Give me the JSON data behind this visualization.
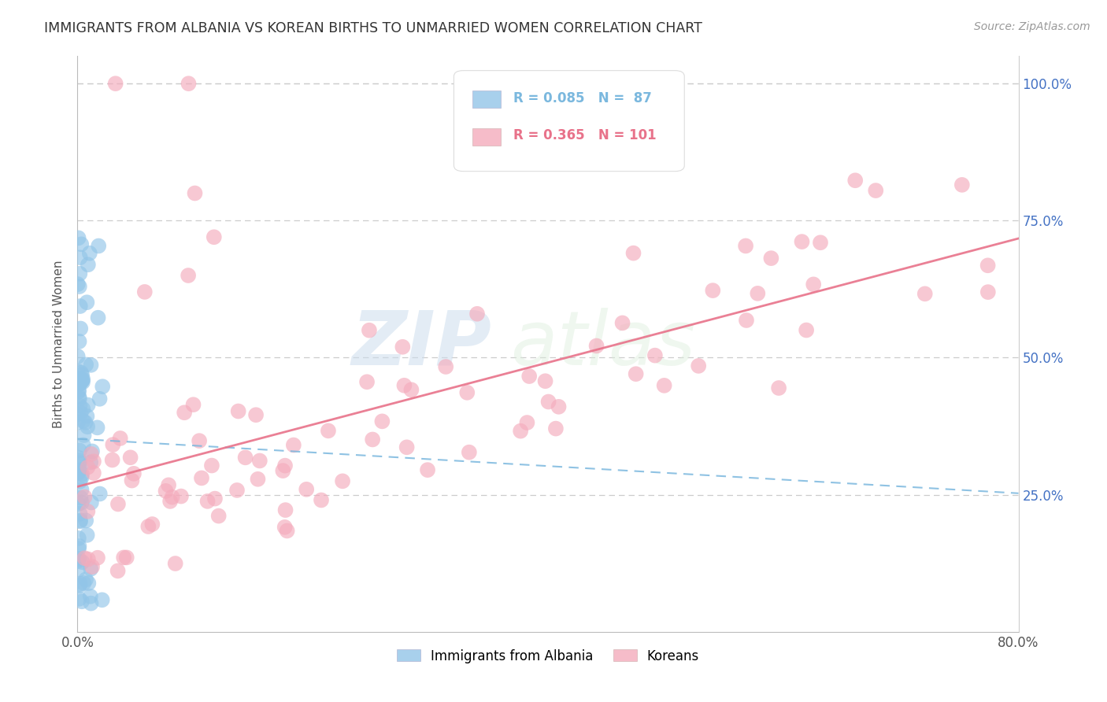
{
  "title": "IMMIGRANTS FROM ALBANIA VS KOREAN BIRTHS TO UNMARRIED WOMEN CORRELATION CHART",
  "source": "Source: ZipAtlas.com",
  "ylabel_left": "Births to Unmarried Women",
  "legend_label1": "Immigrants from Albania",
  "legend_label2": "Koreans",
  "watermark_zip": "ZIP",
  "watermark_atlas": "atlas",
  "title_color": "#333333",
  "source_color": "#999999",
  "blue_dot_color": "#92C5E8",
  "pink_dot_color": "#F4ABBC",
  "blue_line_color": "#7BB8DE",
  "pink_line_color": "#E8728A",
  "right_axis_color": "#4472C4",
  "grid_color": "#CCCCCC",
  "xmax": 0.8,
  "ymax": 1.05
}
